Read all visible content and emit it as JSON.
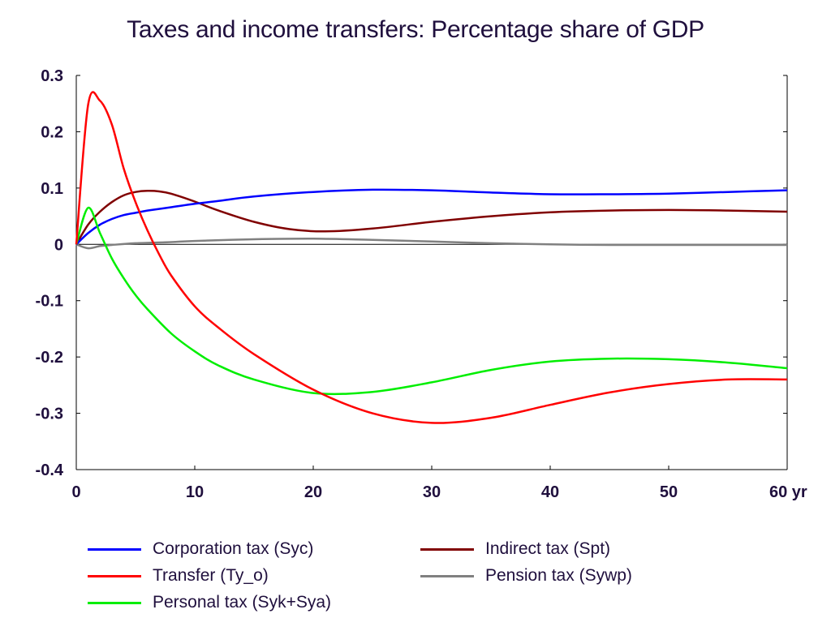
{
  "chart_data": {
    "type": "line",
    "title": "Taxes and income transfers: Percentage share of GDP",
    "xlabel": "",
    "ylabel": "",
    "xlim": [
      0,
      60
    ],
    "ylim": [
      -0.4,
      0.3
    ],
    "x_ticks": [
      "0",
      "10",
      "20",
      "30",
      "40",
      "50",
      "60 yr"
    ],
    "x_tick_values": [
      0,
      10,
      20,
      30,
      40,
      50,
      60
    ],
    "y_ticks": [
      "0.3",
      "0.2",
      "0.1",
      "0",
      "-0.1",
      "-0.2",
      "-0.3",
      "-0.4"
    ],
    "y_tick_values": [
      0.3,
      0.2,
      0.1,
      0,
      -0.1,
      -0.2,
      -0.3,
      -0.4
    ],
    "grid": false,
    "legend_position": "bottom",
    "series": [
      {
        "name": "Corporation tax (Syc)",
        "color": "#0000ff",
        "x": [
          0,
          1,
          2,
          3,
          4,
          5,
          6,
          8,
          10,
          12,
          15,
          20,
          25,
          30,
          35,
          40,
          45,
          50,
          55,
          60
        ],
        "y": [
          0,
          0.02,
          0.035,
          0.045,
          0.052,
          0.056,
          0.06,
          0.066,
          0.072,
          0.077,
          0.085,
          0.093,
          0.097,
          0.096,
          0.092,
          0.089,
          0.089,
          0.09,
          0.093,
          0.096
        ]
      },
      {
        "name": "Transfer (Ty_o)",
        "color": "#ff0000",
        "x": [
          0,
          1,
          2,
          3,
          4,
          5,
          6,
          7,
          8,
          10,
          12,
          15,
          20,
          25,
          30,
          35,
          40,
          45,
          50,
          55,
          60
        ],
        "y": [
          0,
          0.248,
          0.255,
          0.213,
          0.135,
          0.075,
          0.025,
          -0.018,
          -0.055,
          -0.11,
          -0.148,
          -0.195,
          -0.258,
          -0.3,
          -0.317,
          -0.308,
          -0.285,
          -0.263,
          -0.248,
          -0.24,
          -0.24
        ]
      },
      {
        "name": "Personal tax (Syk+Sya)",
        "color": "#00ee00",
        "x": [
          0,
          1,
          2,
          3,
          4,
          5,
          6,
          8,
          10,
          12,
          15,
          20,
          25,
          30,
          35,
          40,
          45,
          50,
          55,
          60
        ],
        "y": [
          0,
          0.065,
          0.02,
          -0.025,
          -0.06,
          -0.09,
          -0.115,
          -0.158,
          -0.19,
          -0.215,
          -0.24,
          -0.264,
          -0.262,
          -0.245,
          -0.223,
          -0.208,
          -0.203,
          -0.204,
          -0.21,
          -0.22
        ]
      },
      {
        "name": "Indirect tax (Spt)",
        "color": "#800000",
        "x": [
          0,
          1,
          2,
          3,
          4,
          5,
          6,
          7,
          8,
          10,
          12,
          15,
          18,
          21,
          25,
          30,
          35,
          40,
          45,
          50,
          55,
          60
        ],
        "y": [
          0,
          0.035,
          0.058,
          0.075,
          0.087,
          0.093,
          0.095,
          0.094,
          0.09,
          0.076,
          0.06,
          0.04,
          0.027,
          0.023,
          0.028,
          0.04,
          0.05,
          0.057,
          0.06,
          0.061,
          0.06,
          0.058
        ]
      },
      {
        "name": "Pension tax (Sywp)",
        "color": "#808080",
        "x": [
          0,
          1,
          2,
          3,
          5,
          8,
          10,
          15,
          20,
          25,
          30,
          35,
          40,
          45,
          50,
          55,
          60
        ],
        "y": [
          0,
          -0.007,
          -0.003,
          -0.001,
          0.002,
          0.004,
          0.006,
          0.009,
          0.01,
          0.008,
          0.005,
          0.002,
          0.0,
          -0.001,
          -0.001,
          -0.001,
          -0.001
        ]
      }
    ]
  }
}
